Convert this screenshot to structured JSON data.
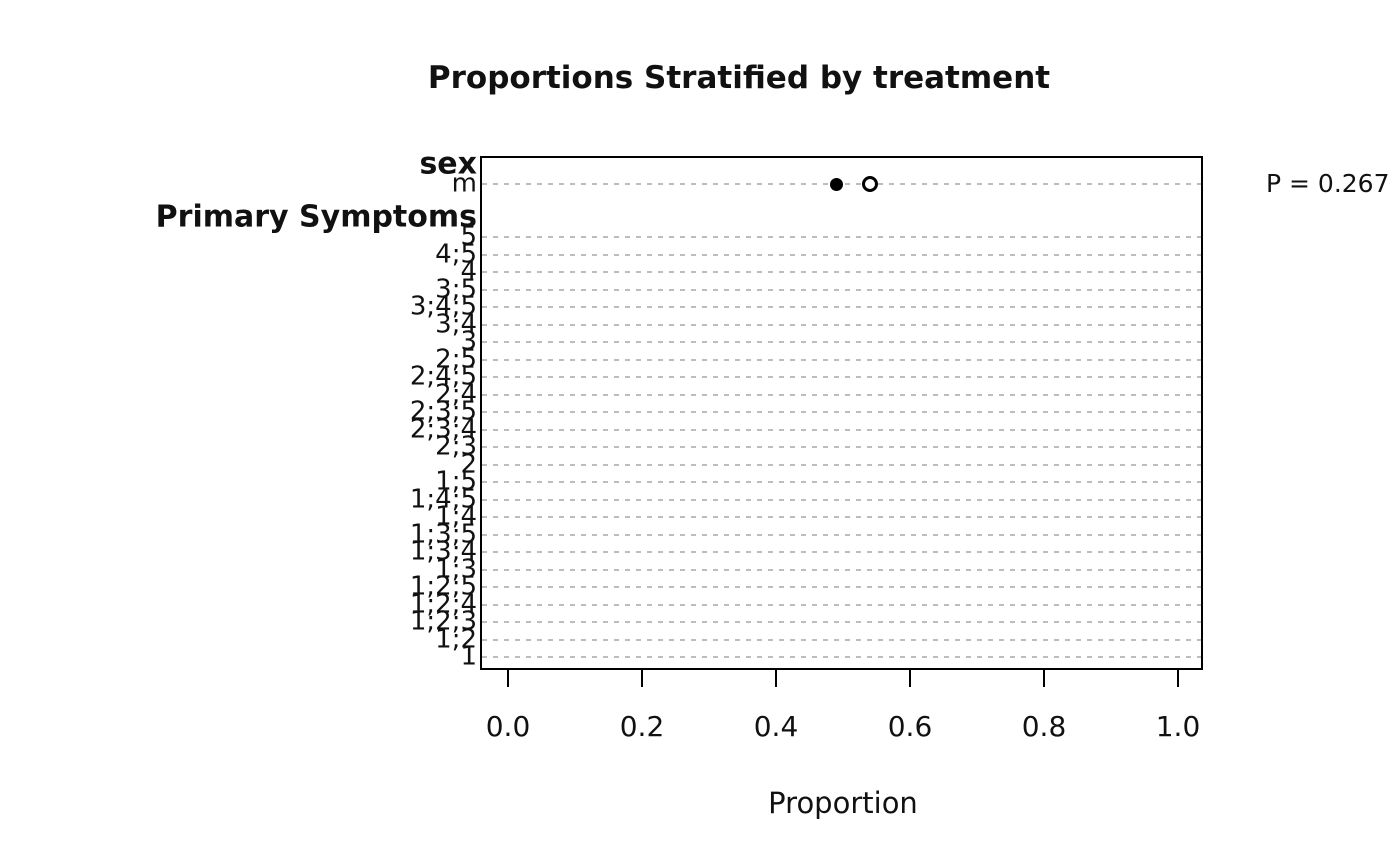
{
  "title": "Proportions Stratified by treatment",
  "x_axis_label": "Proportion",
  "p_value_text": "P = 0.267",
  "chart_data": {
    "type": "scatter",
    "title": "Proportions Stratified by treatment",
    "xlabel": "Proportion",
    "xlim": [
      0,
      1
    ],
    "grid": "horizontal-dashed-gray",
    "x_ticks": [
      {
        "value": 0.0,
        "label": "0.0"
      },
      {
        "value": 0.2,
        "label": "0.2"
      },
      {
        "value": 0.4,
        "label": "0.4"
      },
      {
        "value": 0.6,
        "label": "0.6"
      },
      {
        "value": 0.8,
        "label": "0.8"
      },
      {
        "value": 1.0,
        "label": "1.0"
      }
    ],
    "marker_legend": {
      "filled-circle": "●",
      "open-circle": "○"
    },
    "row_groups": [
      {
        "header": "sex",
        "rows": [
          {
            "label": "m",
            "points": [
              {
                "marker": "filled-circle",
                "x": 0.49
              },
              {
                "marker": "open-circle",
                "x": 0.54
              }
            ],
            "annotation": "P = 0.267"
          }
        ]
      },
      {
        "header": "Primary Symptoms",
        "rows": [
          {
            "label": "5",
            "points": []
          },
          {
            "label": "4;5",
            "points": []
          },
          {
            "label": "4",
            "points": []
          },
          {
            "label": "3;5",
            "points": []
          },
          {
            "label": "3;4;5",
            "points": []
          },
          {
            "label": "3;4",
            "points": []
          },
          {
            "label": "3",
            "points": []
          },
          {
            "label": "2;5",
            "points": []
          },
          {
            "label": "2;4;5",
            "points": []
          },
          {
            "label": "2;4",
            "points": []
          },
          {
            "label": "2;3;5",
            "points": []
          },
          {
            "label": "2;3;4",
            "points": []
          },
          {
            "label": "2;3",
            "points": []
          },
          {
            "label": "2",
            "points": []
          },
          {
            "label": "1;5",
            "points": []
          },
          {
            "label": "1;4;5",
            "points": []
          },
          {
            "label": "1;4",
            "points": []
          },
          {
            "label": "1;3;5",
            "points": []
          },
          {
            "label": "1;3;4",
            "points": []
          },
          {
            "label": "1;3",
            "points": []
          },
          {
            "label": "1;2;5",
            "points": []
          },
          {
            "label": "1;2;4",
            "points": []
          },
          {
            "label": "1;2;3",
            "points": []
          },
          {
            "label": "1;2",
            "points": []
          },
          {
            "label": "1",
            "points": []
          }
        ]
      }
    ]
  }
}
